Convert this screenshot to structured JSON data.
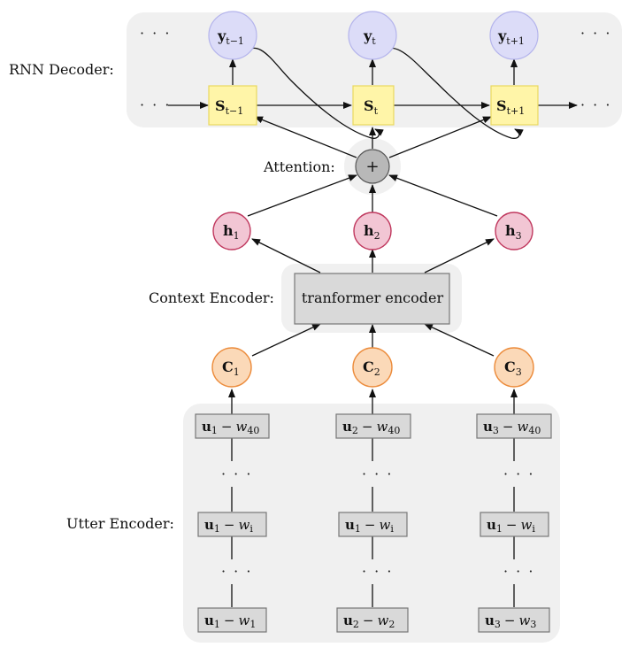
{
  "labels": {
    "rnn_decoder": "RNN Decoder:",
    "attention": "Attention:",
    "context_encoder": "Context Encoder:",
    "utter_encoder": "Utter Encoder:"
  },
  "decoder": {
    "y_nodes": [
      {
        "base": "y",
        "sub": "t−1"
      },
      {
        "base": "y",
        "sub": "t"
      },
      {
        "base": "y",
        "sub": "t+1"
      }
    ],
    "s_nodes": [
      {
        "base": "S",
        "sub": "t−1"
      },
      {
        "base": "S",
        "sub": "t"
      },
      {
        "base": "S",
        "sub": "t+1"
      }
    ],
    "ellipsis": "· · ·"
  },
  "attention_op": "+",
  "hidden_nodes": [
    {
      "base": "h",
      "sub": "1"
    },
    {
      "base": "h",
      "sub": "2"
    },
    {
      "base": "h",
      "sub": "3"
    }
  ],
  "transformer_label": "tranformer encoder",
  "context_nodes": [
    {
      "base": "C",
      "sub": "1"
    },
    {
      "base": "C",
      "sub": "2"
    },
    {
      "base": "C",
      "sub": "3"
    }
  ],
  "utter_columns": [
    {
      "top": {
        "u": "u",
        "usub": "1",
        "w": "w",
        "wsub": "40"
      },
      "mid": {
        "u": "u",
        "usub": "1",
        "w": "w",
        "wsub": "i"
      },
      "bottom": {
        "u": "u",
        "usub": "1",
        "w": "w",
        "wsub": "1"
      }
    },
    {
      "top": {
        "u": "u",
        "usub": "2",
        "w": "w",
        "wsub": "40"
      },
      "mid": {
        "u": "u",
        "usub": "1",
        "w": "w",
        "wsub": "i"
      },
      "bottom": {
        "u": "u",
        "usub": "2",
        "w": "w",
        "wsub": "2"
      }
    },
    {
      "top": {
        "u": "u",
        "usub": "3",
        "w": "w",
        "wsub": "40"
      },
      "mid": {
        "u": "u",
        "usub": "1",
        "w": "w",
        "wsub": "i"
      },
      "bottom": {
        "u": "u",
        "usub": "3",
        "w": "w",
        "wsub": "3"
      }
    }
  ],
  "minus": "−",
  "vdots": "· · ·",
  "colors": {
    "panel": "#f0f0f0",
    "y_fill": "#dcdcf8",
    "y_stroke": "#b4b4ec",
    "s_fill": "#fff5a8",
    "s_stroke": "#e8d860",
    "h_fill": "#f2c6d4",
    "h_stroke": "#c0385e",
    "c_fill": "#fbd9b8",
    "c_stroke": "#ec8c3c",
    "plus_fill": "#b8b8b8",
    "transformer_fill": "#d9d9d9"
  }
}
